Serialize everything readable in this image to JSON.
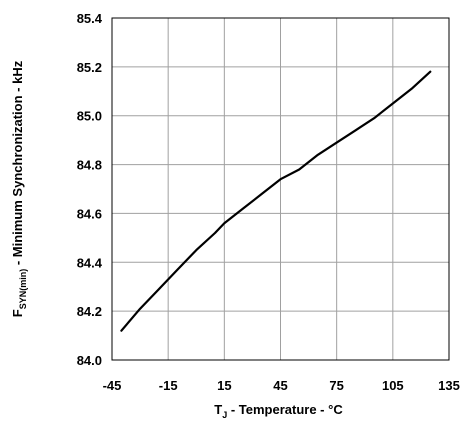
{
  "chart_data": {
    "type": "line",
    "title": "",
    "xlabel": {
      "symbol": "T",
      "subscript": "J",
      "text": " - Temperature - °C"
    },
    "ylabel": {
      "symbol": "F",
      "subscript": "SYN(min)",
      "text": " - Minimum Synchronization - kHz"
    },
    "xlim": [
      -45,
      135
    ],
    "ylim": [
      84.0,
      85.4
    ],
    "x_ticks": [
      "-45",
      "-15",
      "15",
      "45",
      "75",
      "105",
      "135"
    ],
    "y_ticks": [
      "84.0",
      "84.2",
      "84.4",
      "84.6",
      "84.8",
      "85.0",
      "85.2",
      "85.4"
    ],
    "grid": true,
    "legend": "none",
    "line_color": "#000000",
    "grid_color": "#a0a0a0",
    "series": [
      {
        "x": [
          -40,
          -30,
          -20,
          -10,
          0,
          10,
          15,
          25,
          35,
          45,
          55,
          65,
          75,
          85,
          95,
          105,
          115,
          125
        ],
        "values": [
          84.12,
          84.21,
          84.29,
          84.37,
          84.45,
          84.52,
          84.56,
          84.62,
          84.68,
          84.74,
          84.78,
          84.84,
          84.89,
          84.94,
          84.99,
          85.05,
          85.11,
          85.18
        ]
      }
    ]
  }
}
